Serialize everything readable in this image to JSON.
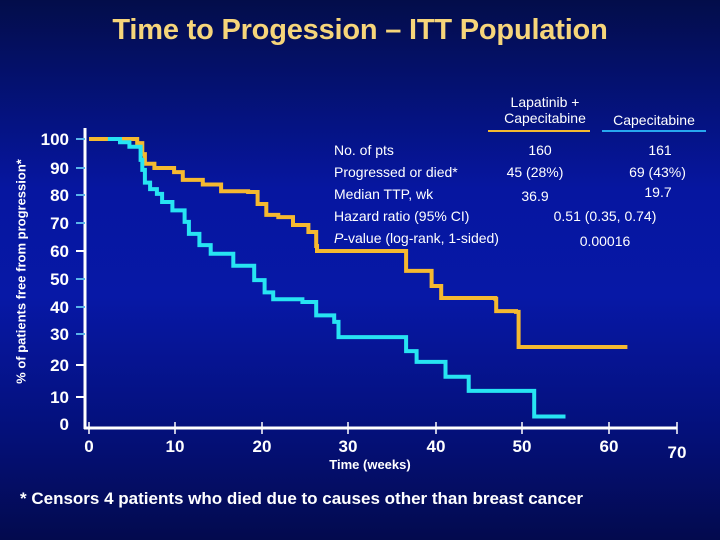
{
  "slide": {
    "title": "Time to Progession – ITT Population",
    "footnote": "* Censors 4 patients who died due to causes other than breast cancer"
  },
  "colors": {
    "lapatinib_capecitabine": "#f5b930",
    "capecitabine": "#27e4f2",
    "axis": "#ffffff",
    "title": "#f6d57a"
  },
  "summary_table": {
    "columns": [
      {
        "label": "Lapatinib + Capecitabine",
        "line1": "Lapatinib +",
        "line2": "Capecitabine"
      },
      {
        "label": "Capecitabine"
      }
    ],
    "rows": [
      {
        "label": "No. of pts",
        "values": [
          "160",
          "161"
        ]
      },
      {
        "label": "Progressed or died*",
        "values": [
          "45 (28%)",
          "69 (43%)"
        ]
      },
      {
        "label": "Median TTP, wk",
        "values": [
          "36.9",
          "19.7"
        ]
      },
      {
        "label": "Hazard ratio (95% CI)",
        "combined": "0.51 (0.35, 0.74)"
      },
      {
        "label_italic": "P",
        "label_rest": "-value (log-rank, 1-sided)",
        "combined": "0.00016"
      }
    ]
  },
  "chart_data": {
    "type": "line",
    "title": "Time to Progession – ITT Population",
    "xlabel": "Time (weeks)",
    "ylabel": "% of patients free from progression*",
    "xlim": [
      0,
      70
    ],
    "ylim": [
      0,
      100
    ],
    "x_ticks": [
      0,
      10,
      20,
      30,
      40,
      50,
      60,
      70
    ],
    "y_ticks": [
      0,
      10,
      20,
      30,
      40,
      50,
      60,
      70,
      80,
      90,
      100
    ],
    "grid": false,
    "step": true,
    "series": [
      {
        "name": "Lapatinib + Capecitabine",
        "color_key": "lapatinib_capecitabine",
        "points": [
          [
            0,
            100
          ],
          [
            4.8,
            100
          ],
          [
            5.6,
            98.6
          ],
          [
            6.2,
            94.8
          ],
          [
            6.5,
            91.5
          ],
          [
            7.6,
            90.0
          ],
          [
            9.9,
            88.5
          ],
          [
            10.9,
            85.6
          ],
          [
            13.2,
            83.9
          ],
          [
            15.3,
            81.4
          ],
          [
            18.4,
            81.1
          ],
          [
            19.5,
            76.8
          ],
          [
            20.5,
            72.9
          ],
          [
            21.9,
            72.1
          ],
          [
            23.6,
            69.3
          ],
          [
            25.4,
            66.8
          ],
          [
            26.3,
            61.8
          ],
          [
            26.4,
            60.0
          ],
          [
            36.2,
            60.0
          ],
          [
            36.6,
            52.9
          ],
          [
            39.5,
            47.5
          ],
          [
            40.6,
            43.2
          ],
          [
            46.9,
            42.9
          ],
          [
            47.0,
            38.5
          ],
          [
            49.3,
            38.2
          ],
          [
            49.6,
            25.8
          ],
          [
            62.7,
            25.8
          ]
        ]
      },
      {
        "name": "Capecitabine",
        "color_key": "capecitabine",
        "points": [
          [
            2.2,
            100
          ],
          [
            3.6,
            98.9
          ],
          [
            4.7,
            97.3
          ],
          [
            6.0,
            92.8
          ],
          [
            6.2,
            89.3
          ],
          [
            6.5,
            84.6
          ],
          [
            7.1,
            82.2
          ],
          [
            7.9,
            80.4
          ],
          [
            8.5,
            77.5
          ],
          [
            9.7,
            74.5
          ],
          [
            11.1,
            70.4
          ],
          [
            11.6,
            66.1
          ],
          [
            12.8,
            62.1
          ],
          [
            14.1,
            59.0
          ],
          [
            16.7,
            54.7
          ],
          [
            19.1,
            49.6
          ],
          [
            20.3,
            45.2
          ],
          [
            21.3,
            42.8
          ],
          [
            24.7,
            41.8
          ],
          [
            26.3,
            36.9
          ],
          [
            28.4,
            34.5
          ],
          [
            28.9,
            29.0
          ],
          [
            36.1,
            29.0
          ],
          [
            36.6,
            24.5
          ],
          [
            37.8,
            24.2
          ],
          [
            37.8,
            21.0
          ],
          [
            41.1,
            21.0
          ],
          [
            41.1,
            16.3
          ],
          [
            43.8,
            16.3
          ],
          [
            43.8,
            11.9
          ],
          [
            51.4,
            11.9
          ],
          [
            51.4,
            3.7
          ],
          [
            55.0,
            3.7
          ]
        ]
      }
    ]
  }
}
